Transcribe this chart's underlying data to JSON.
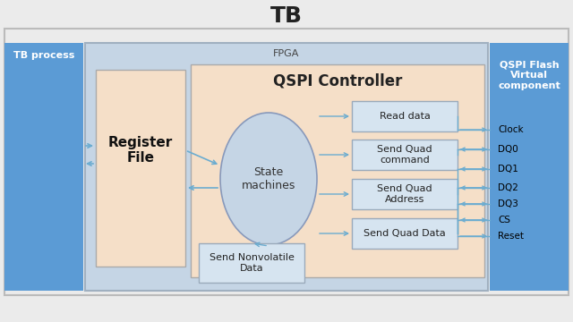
{
  "title": "TB",
  "bg_color": "#ebebeb",
  "fpga_bg": "#c5d5e5",
  "fpga_inner_bg": "#f5dfc8",
  "tb_process_color": "#5b9bd5",
  "qspi_flash_color": "#5b9bd5",
  "register_file_bg": "#f5dfc8",
  "state_machine_bg": "#c5d5e5",
  "small_box_bg": "#d6e4f0",
  "fpga_label": "FPGA",
  "tb_process_label": "TB process",
  "qspi_flash_label": "QSPI Flash\nVirtual\ncomponent",
  "register_file_label": "Register\nFile",
  "state_machine_label": "State\nmachines",
  "qspi_controller_label": "QSPI Controller",
  "small_boxes": [
    "Read data",
    "Send Quad\ncommand",
    "Send Quad\nAddress",
    "Send Quad Data"
  ],
  "bottom_box_label": "Send Nonvolatile\nData",
  "signal_labels": [
    "Clock",
    "DQ0",
    "DQ1",
    "DQ2",
    "DQ3",
    "CS",
    "Reset"
  ],
  "arrow_color": "#6bacd0"
}
